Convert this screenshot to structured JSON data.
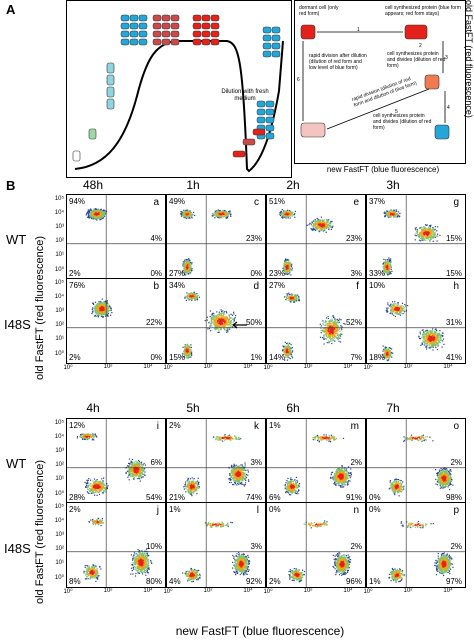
{
  "panel_a": {
    "letter": "A",
    "dilution_label": "Dilution with fresh medium",
    "schema": {
      "s1": "dormant cell (only red form)",
      "s2": "cell synthesized protein (blue form appears; red form stays)",
      "s3": "cell synthesizes protein and divides (dilution of red form)",
      "s4": "cell synthesizes protein and divides (dilution of red form)",
      "s5": "rapid division (dilution of red form and dilution of blue form)",
      "s6": "rapid division after dilution (dilution of red form and low level of blue form)",
      "n1": "1",
      "n2": "2",
      "n3": "3",
      "n4": "4",
      "n5": "5",
      "n6": "6",
      "xlabel": "new FastFT (blue fluorescence)",
      "ylabel": "old FastFT (red fluorescence)"
    }
  },
  "panel_b": {
    "letter": "B",
    "row_labels": [
      "WT",
      "I48S",
      "WT",
      "I48S"
    ],
    "top_times": [
      "48h",
      "1h",
      "2h",
      "3h"
    ],
    "bottom_times": [
      "4h",
      "5h",
      "6h",
      "7h"
    ],
    "ylabel": "old FastFT (red fluorescence)",
    "xlabel": "new FastFT (blue fluorescence)",
    "yticks": [
      "10⁵",
      "10⁴",
      "10³",
      "10²",
      "10¹",
      "10⁰"
    ],
    "xticks": [
      "10⁰",
      "10²",
      "10⁴"
    ]
  },
  "plots": [
    {
      "letter": "a",
      "tl": "94%",
      "r": "4%",
      "bl": "2%",
      "br": "0%"
    },
    {
      "letter": "c",
      "tl": "49%",
      "r": "23%",
      "bl": "27%",
      "br": "0%"
    },
    {
      "letter": "e",
      "tl": "51%",
      "r": "23%",
      "bl": "23%",
      "br": "3%"
    },
    {
      "letter": "g",
      "tl": "37%",
      "r": "15%",
      "bl": "33%",
      "br": "15%"
    },
    {
      "letter": "b",
      "tl": "76%",
      "r": "22%",
      "bl": "2%",
      "br": "0%"
    },
    {
      "letter": "d",
      "tl": "34%",
      "r": "50%",
      "bl": "15%",
      "br": "1%"
    },
    {
      "letter": "f",
      "tl": "27%",
      "r": "52%",
      "bl": "14%",
      "br": "7%"
    },
    {
      "letter": "h",
      "tl": "10%",
      "r": "31%",
      "bl": "18%",
      "br": "41%"
    },
    {
      "letter": "i",
      "tl": "12%",
      "r": "6%",
      "bl": "28%",
      "br": "54%"
    },
    {
      "letter": "k",
      "tl": "2%",
      "r": "3%",
      "bl": "21%",
      "br": "74%"
    },
    {
      "letter": "m",
      "tl": "1%",
      "r": "2%",
      "bl": "6%",
      "br": "91%"
    },
    {
      "letter": "o",
      "tl": "",
      "r": "2%",
      "bl": "0%",
      "br": "98%"
    },
    {
      "letter": "j",
      "tl": "2%",
      "r": "10%",
      "bl": "8%",
      "br": "80%"
    },
    {
      "letter": "l",
      "tl": "1%",
      "r": "3%",
      "bl": "4%",
      "br": "92%"
    },
    {
      "letter": "n",
      "tl": "0%",
      "r": "2%",
      "bl": "2%",
      "br": "96%"
    },
    {
      "letter": "p",
      "tl": "0%",
      "r": "2%",
      "bl": "1%",
      "br": "97%"
    }
  ]
}
